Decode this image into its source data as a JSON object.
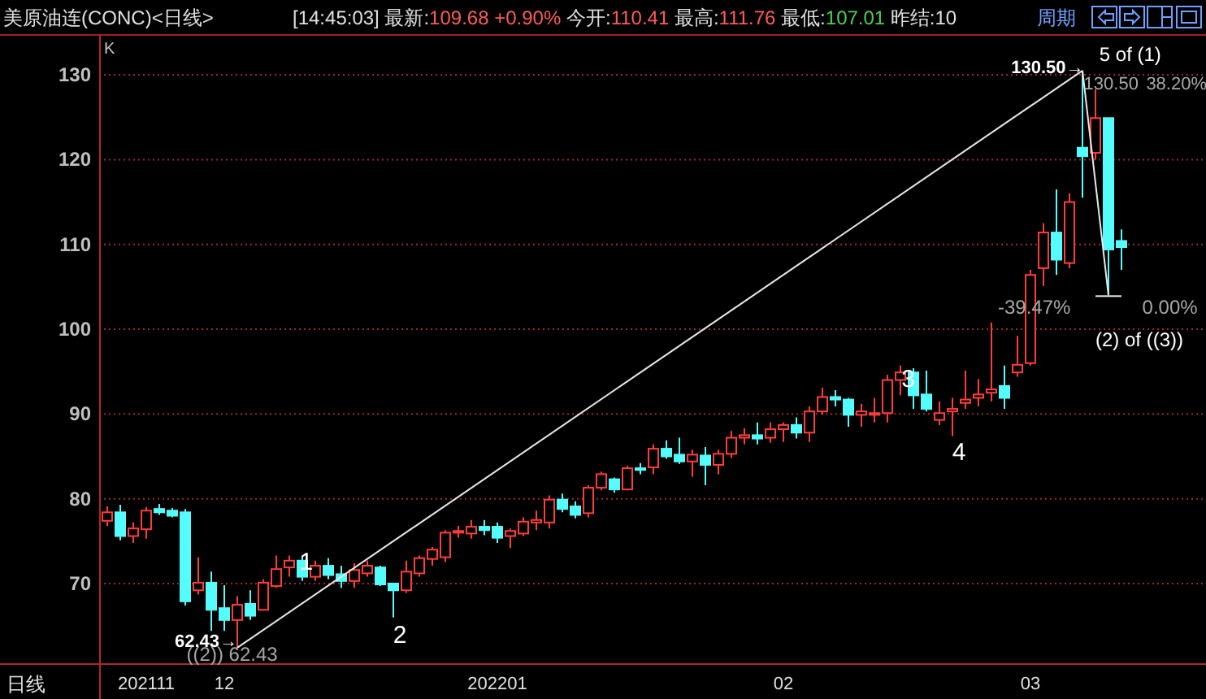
{
  "chart_data": {
    "type": "candlestick",
    "title": "美原油连(CONC)<日线>",
    "subtitle": "[14:45:03] 最新:109.68 +0.90% 今开:110.41 最高:111.76 最低:107.01 昨结:10",
    "categories": [
      null,
      null,
      null,
      "202111",
      null,
      null,
      null,
      null,
      null,
      "12",
      null,
      null,
      null,
      null,
      null,
      null,
      null,
      null,
      null,
      null,
      null,
      null,
      null,
      null,
      null,
      null,
      null,
      null,
      null,
      null,
      "202201",
      null,
      null,
      null,
      null,
      null,
      null,
      null,
      null,
      null,
      null,
      null,
      null,
      null,
      null,
      null,
      null,
      null,
      null,
      null,
      null,
      null,
      "02",
      null,
      null,
      null,
      null,
      null,
      null,
      null,
      null,
      null,
      null,
      null,
      null,
      null,
      null,
      null,
      null,
      null,
      null,
      "03",
      null,
      null,
      null,
      null,
      null,
      null,
      null
    ],
    "ylim": [
      60.6,
      134.8
    ],
    "yticks": [
      70,
      80,
      90,
      100,
      110,
      120,
      130
    ],
    "grid": "y",
    "series": [
      {
        "ohlc": [
          [
            77.4,
            79.1,
            76.8,
            78.4
          ],
          [
            78.4,
            79.3,
            75.1,
            75.6
          ],
          [
            75.6,
            77.2,
            74.8,
            76.5
          ],
          [
            76.4,
            79.0,
            75.3,
            78.6
          ],
          [
            78.8,
            79.4,
            78.1,
            78.4
          ],
          [
            78.6,
            78.9,
            77.8,
            78.0
          ],
          [
            78.4,
            78.8,
            67.4,
            67.9
          ],
          [
            69.2,
            73.1,
            68.7,
            70.1
          ],
          [
            70.1,
            71.4,
            64.4,
            66.9
          ],
          [
            67.1,
            69.8,
            64.4,
            65.7
          ],
          [
            65.7,
            68.5,
            62.43,
            67.5
          ],
          [
            67.6,
            69.2,
            65.7,
            66.2
          ],
          [
            66.9,
            70.5,
            66.8,
            70.1
          ],
          [
            69.7,
            73.3,
            69.5,
            71.7
          ],
          [
            71.9,
            73.3,
            70.8,
            72.7
          ],
          [
            72.7,
            73.3,
            70.3,
            70.8
          ],
          [
            70.8,
            72.7,
            70.3,
            72.1
          ],
          [
            72.1,
            73.0,
            70.5,
            71.0
          ],
          [
            71.1,
            72.1,
            69.5,
            70.3
          ],
          [
            70.3,
            72.4,
            69.5,
            71.6
          ],
          [
            71.2,
            72.7,
            70.8,
            72.1
          ],
          [
            71.9,
            72.1,
            69.7,
            69.9
          ],
          [
            70.0,
            70.1,
            66.0,
            69.2
          ],
          [
            69.2,
            72.7,
            68.9,
            71.4
          ],
          [
            71.2,
            73.3,
            70.8,
            73.0
          ],
          [
            72.9,
            74.3,
            72.1,
            74.0
          ],
          [
            73.1,
            76.3,
            72.5,
            76.0
          ],
          [
            76.0,
            76.8,
            75.4,
            76.2
          ],
          [
            75.9,
            77.5,
            75.3,
            76.7
          ],
          [
            76.7,
            77.5,
            75.7,
            76.3
          ],
          [
            76.7,
            77.2,
            74.8,
            75.4
          ],
          [
            75.6,
            76.5,
            74.2,
            76.2
          ],
          [
            75.9,
            77.8,
            75.6,
            77.3
          ],
          [
            77.2,
            78.6,
            76.3,
            77.5
          ],
          [
            77.2,
            80.4,
            76.5,
            79.9
          ],
          [
            79.9,
            80.6,
            78.4,
            78.8
          ],
          [
            79.1,
            79.7,
            77.7,
            78.1
          ],
          [
            78.3,
            81.6,
            77.8,
            81.3
          ],
          [
            81.3,
            83.2,
            81.0,
            82.9
          ],
          [
            82.3,
            82.5,
            80.7,
            81.1
          ],
          [
            81.1,
            83.9,
            81.0,
            83.6
          ],
          [
            83.6,
            84.2,
            82.9,
            83.4
          ],
          [
            83.7,
            86.4,
            82.9,
            85.9
          ],
          [
            85.9,
            86.9,
            84.7,
            85.0
          ],
          [
            85.2,
            87.2,
            84.1,
            84.4
          ],
          [
            84.4,
            85.8,
            82.6,
            85.2
          ],
          [
            85.1,
            86.1,
            81.6,
            84.0
          ],
          [
            84.0,
            85.8,
            82.9,
            85.3
          ],
          [
            85.3,
            88.0,
            84.8,
            87.2
          ],
          [
            87.2,
            88.3,
            86.4,
            87.5
          ],
          [
            87.5,
            89.0,
            86.4,
            87.1
          ],
          [
            87.2,
            89.0,
            86.6,
            88.2
          ],
          [
            88.2,
            89.0,
            86.7,
            88.7
          ],
          [
            88.7,
            89.6,
            87.1,
            87.8
          ],
          [
            87.8,
            90.9,
            86.7,
            90.3
          ],
          [
            90.3,
            93.1,
            89.9,
            92.0
          ],
          [
            92.0,
            92.8,
            90.9,
            91.7
          ],
          [
            91.7,
            91.9,
            88.5,
            89.9
          ],
          [
            89.9,
            91.2,
            88.5,
            90.3
          ],
          [
            89.9,
            91.9,
            89.0,
            90.1
          ],
          [
            90.1,
            94.6,
            89.0,
            94.0
          ],
          [
            94.0,
            95.7,
            92.2,
            94.9
          ],
          [
            94.9,
            95.4,
            90.6,
            92.2
          ],
          [
            92.3,
            95.1,
            90.3,
            90.6
          ],
          [
            89.3,
            91.5,
            88.7,
            90.1
          ],
          [
            90.3,
            91.9,
            87.4,
            90.6
          ],
          [
            91.3,
            95.1,
            90.6,
            91.7
          ],
          [
            91.9,
            94.1,
            90.9,
            92.3
          ],
          [
            92.5,
            100.8,
            91.5,
            92.9
          ],
          [
            93.3,
            95.7,
            90.6,
            91.9
          ],
          [
            94.9,
            99.2,
            94.4,
            95.8
          ],
          [
            96.0,
            107.0,
            95.7,
            106.4
          ],
          [
            107.2,
            112.5,
            105.1,
            111.4
          ],
          [
            111.4,
            116.5,
            106.4,
            108.2
          ],
          [
            107.8,
            116.0,
            107.2,
            115.0
          ],
          [
            121.4,
            130.5,
            115.5,
            120.4
          ],
          [
            120.8,
            128.3,
            120.0,
            124.9
          ],
          [
            124.9,
            124.9,
            104.0,
            109.4
          ],
          [
            110.41,
            111.76,
            107.01,
            109.68
          ]
        ]
      },
      {
        "type": "line",
        "color": "#e8e8e8",
        "values": [
          null,
          null,
          null,
          null,
          null,
          null,
          null,
          null,
          null,
          null,
          62.43,
          null,
          null,
          null,
          null,
          null,
          null,
          null,
          null,
          null,
          null,
          null,
          null,
          null,
          null,
          null,
          null,
          null,
          null,
          null,
          null,
          null,
          null,
          null,
          null,
          null,
          null,
          null,
          null,
          null,
          null,
          null,
          null,
          null,
          null,
          null,
          null,
          null,
          null,
          null,
          null,
          null,
          null,
          null,
          null,
          null,
          null,
          null,
          null,
          null,
          null,
          null,
          null,
          null,
          null,
          null,
          null,
          null,
          null,
          null,
          null,
          null,
          null,
          null,
          null,
          130.5,
          null,
          null,
          null
        ]
      },
      {
        "type": "line",
        "color": "#e8e8e8",
        "values": [
          null,
          null,
          null,
          null,
          null,
          null,
          null,
          null,
          null,
          null,
          null,
          null,
          null,
          null,
          null,
          null,
          null,
          null,
          null,
          null,
          null,
          null,
          null,
          null,
          null,
          null,
          null,
          null,
          null,
          null,
          null,
          null,
          null,
          null,
          null,
          null,
          null,
          null,
          null,
          null,
          null,
          null,
          null,
          null,
          null,
          null,
          null,
          null,
          null,
          null,
          null,
          null,
          null,
          null,
          null,
          null,
          null,
          null,
          null,
          null,
          null,
          null,
          null,
          null,
          null,
          null,
          null,
          null,
          null,
          null,
          null,
          null,
          null,
          null,
          null,
          130.5,
          null,
          104.0,
          null
        ]
      },
      {
        "type": "line",
        "color": "#e8e8e8",
        "values": [
          null,
          null,
          null,
          null,
          null,
          null,
          null,
          null,
          null,
          null,
          null,
          null,
          null,
          null,
          null,
          null,
          null,
          null,
          null,
          null,
          null,
          null,
          null,
          null,
          null,
          null,
          null,
          null,
          null,
          null,
          null,
          null,
          null,
          null,
          null,
          null,
          null,
          null,
          null,
          null,
          null,
          null,
          null,
          null,
          null,
          null,
          null,
          null,
          null,
          null,
          null,
          null,
          null,
          null,
          null,
          null,
          null,
          null,
          null,
          null,
          null,
          null,
          null,
          null,
          null,
          null,
          null,
          null,
          null,
          null,
          null,
          null,
          null,
          null,
          null,
          null,
          103.9,
          null,
          103.9
        ]
      }
    ],
    "annotations": [
      "K",
      "日线",
      "周期",
      "1",
      "2",
      "3",
      "4",
      "5 of (1)",
      "130.50→",
      "130.50",
      "38.20%",
      "-39.47%",
      "0.00%",
      "(2) of ((3))",
      "62.43→",
      "((2)) 62.43"
    ]
  }
}
